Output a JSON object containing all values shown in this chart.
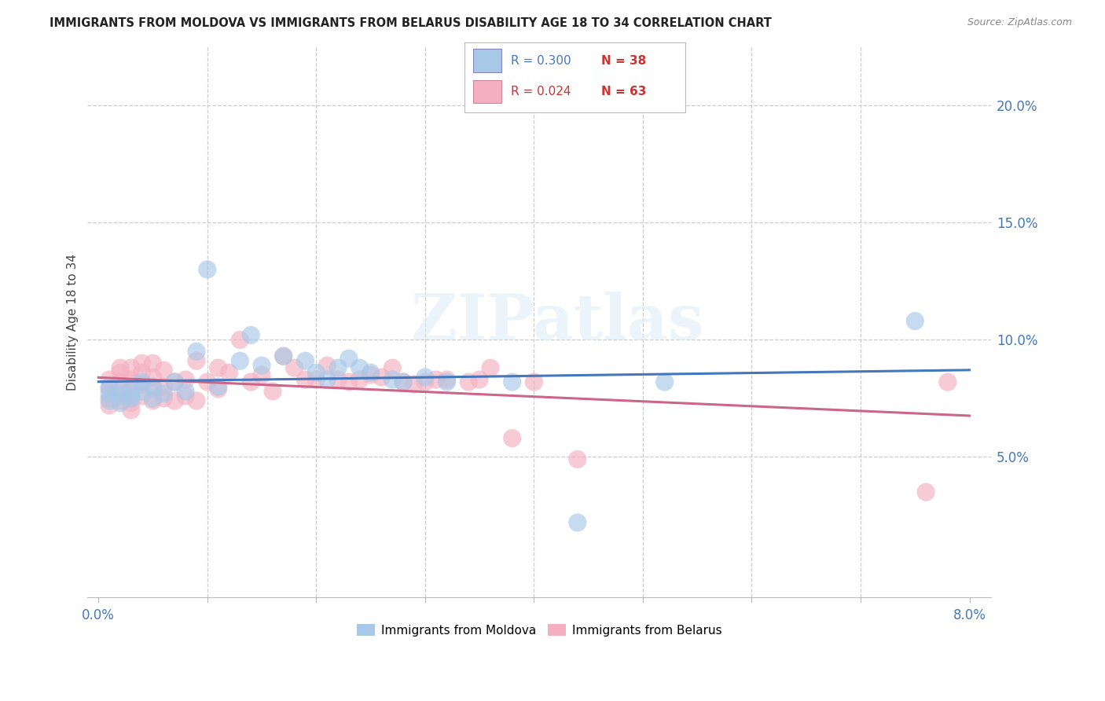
{
  "title": "IMMIGRANTS FROM MOLDOVA VS IMMIGRANTS FROM BELARUS DISABILITY AGE 18 TO 34 CORRELATION CHART",
  "source": "Source: ZipAtlas.com",
  "ylabel": "Disability Age 18 to 34",
  "right_yticks": [
    "5.0%",
    "10.0%",
    "15.0%",
    "20.0%"
  ],
  "right_ytick_vals": [
    0.05,
    0.1,
    0.15,
    0.2
  ],
  "xlim": [
    -0.001,
    0.082
  ],
  "ylim": [
    -0.01,
    0.225
  ],
  "legend_label1": "Immigrants from Moldova",
  "legend_label2": "Immigrants from Belarus",
  "color_blue": "#a8c8e8",
  "color_pink": "#f4b0c0",
  "trendline1_color": "#4477bb",
  "trendline2_color": "#cc6688",
  "watermark": "ZIPatlas",
  "moldova_x": [
    0.001,
    0.001,
    0.001,
    0.002,
    0.002,
    0.002,
    0.003,
    0.003,
    0.003,
    0.004,
    0.004,
    0.005,
    0.005,
    0.006,
    0.007,
    0.008,
    0.009,
    0.01,
    0.011,
    0.013,
    0.014,
    0.015,
    0.017,
    0.019,
    0.02,
    0.021,
    0.022,
    0.023,
    0.024,
    0.025,
    0.027,
    0.028,
    0.03,
    0.032,
    0.038,
    0.044,
    0.052,
    0.075
  ],
  "moldova_y": [
    0.077,
    0.08,
    0.074,
    0.076,
    0.073,
    0.079,
    0.075,
    0.078,
    0.076,
    0.082,
    0.078,
    0.075,
    0.08,
    0.077,
    0.082,
    0.078,
    0.095,
    0.13,
    0.08,
    0.091,
    0.102,
    0.089,
    0.093,
    0.091,
    0.086,
    0.083,
    0.088,
    0.092,
    0.088,
    0.086,
    0.083,
    0.082,
    0.084,
    0.082,
    0.082,
    0.022,
    0.082,
    0.108
  ],
  "belarus_x": [
    0.001,
    0.001,
    0.001,
    0.001,
    0.002,
    0.002,
    0.002,
    0.002,
    0.002,
    0.003,
    0.003,
    0.003,
    0.003,
    0.003,
    0.004,
    0.004,
    0.004,
    0.004,
    0.005,
    0.005,
    0.005,
    0.005,
    0.006,
    0.006,
    0.006,
    0.007,
    0.007,
    0.008,
    0.008,
    0.009,
    0.009,
    0.01,
    0.011,
    0.011,
    0.012,
    0.013,
    0.014,
    0.015,
    0.016,
    0.017,
    0.018,
    0.019,
    0.02,
    0.021,
    0.022,
    0.023,
    0.024,
    0.025,
    0.026,
    0.027,
    0.028,
    0.029,
    0.03,
    0.031,
    0.032,
    0.034,
    0.035,
    0.036,
    0.038,
    0.04,
    0.044,
    0.076,
    0.078
  ],
  "belarus_y": [
    0.075,
    0.079,
    0.083,
    0.072,
    0.077,
    0.082,
    0.086,
    0.074,
    0.088,
    0.073,
    0.078,
    0.083,
    0.088,
    0.07,
    0.076,
    0.081,
    0.086,
    0.09,
    0.074,
    0.079,
    0.084,
    0.09,
    0.075,
    0.08,
    0.087,
    0.074,
    0.082,
    0.076,
    0.083,
    0.074,
    0.091,
    0.082,
    0.079,
    0.088,
    0.086,
    0.1,
    0.082,
    0.085,
    0.078,
    0.093,
    0.088,
    0.083,
    0.083,
    0.089,
    0.083,
    0.082,
    0.083,
    0.085,
    0.084,
    0.088,
    0.082,
    0.081,
    0.082,
    0.083,
    0.083,
    0.082,
    0.083,
    0.088,
    0.058,
    0.082,
    0.049,
    0.035,
    0.082
  ]
}
